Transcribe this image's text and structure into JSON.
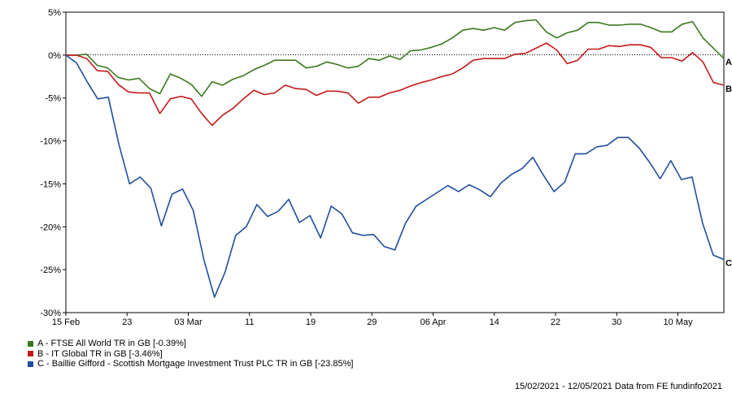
{
  "chart_data": {
    "type": "line",
    "title": "",
    "xlabel": "",
    "ylabel": "",
    "ylim": [
      -30,
      5
    ],
    "yticks": [
      5,
      0,
      -5,
      -10,
      -15,
      -20,
      -25,
      -30
    ],
    "ytick_labels": [
      "5%",
      "0%",
      "-5%",
      "-10%",
      "-15%",
      "-20%",
      "-25%",
      "-30%"
    ],
    "xlim": [
      0,
      86
    ],
    "xticks": [
      {
        "x": 0,
        "label": "15 Feb"
      },
      {
        "x": 8,
        "label": "23"
      },
      {
        "x": 16,
        "label": "03 Mar"
      },
      {
        "x": 24,
        "label": "11"
      },
      {
        "x": 32,
        "label": "19"
      },
      {
        "x": 40,
        "label": "29"
      },
      {
        "x": 48,
        "label": "06 Apr"
      },
      {
        "x": 56,
        "label": "14"
      },
      {
        "x": 64,
        "label": "22"
      },
      {
        "x": 72,
        "label": "30"
      },
      {
        "x": 80,
        "label": "10 May"
      }
    ],
    "grid": false,
    "zero_line": "dotted",
    "legend_position": "bottom-left",
    "series": [
      {
        "name": "A - FTSE All World TR in GB [-0.39%]",
        "end_label": "A",
        "color": "#3a7a1e",
        "values": [
          0,
          0,
          0.1,
          -1.2,
          -1.5,
          -2.6,
          -2.9,
          -2.7,
          -3.9,
          -4.5,
          -2.2,
          -2.7,
          -3.4,
          -4.8,
          -3.1,
          -3.5,
          -2.8,
          -2.4,
          -1.7,
          -1.2,
          -0.6,
          -0.6,
          -0.6,
          -1.5,
          -1.3,
          -0.8,
          -1.1,
          -1.5,
          -1.3,
          -0.4,
          -0.6,
          -0.1,
          -0.5,
          0.5,
          0.6,
          0.9,
          1.3,
          2.0,
          2.9,
          3.1,
          2.9,
          3.2,
          2.9,
          3.8,
          4.0,
          4.1,
          2.7,
          2.0,
          2.6,
          2.9,
          3.8,
          3.8,
          3.5,
          3.5,
          3.6,
          3.6,
          3.2,
          2.7,
          2.7,
          3.6,
          3.9,
          2.0,
          0.8,
          -0.4
        ]
      },
      {
        "name": "B - IT Global TR in GB [-3.46%]",
        "end_label": "B",
        "color": "#c41a1a",
        "values": [
          0,
          0,
          -0.4,
          -1.8,
          -1.9,
          -3.4,
          -4.3,
          -4.4,
          -4.4,
          -6.8,
          -5.1,
          -4.8,
          -5.1,
          -6.8,
          -8.2,
          -7.0,
          -6.2,
          -5.1,
          -4.1,
          -4.6,
          -4.4,
          -3.5,
          -3.9,
          -4.0,
          -4.7,
          -4.2,
          -4.2,
          -4.4,
          -5.6,
          -4.9,
          -4.9,
          -4.4,
          -4.1,
          -3.6,
          -3.2,
          -2.9,
          -2.5,
          -2.2,
          -1.5,
          -0.6,
          -0.4,
          -0.4,
          -0.4,
          0.1,
          0.2,
          0.8,
          1.4,
          0.6,
          -1.0,
          -0.6,
          0.7,
          0.7,
          1.1,
          1.0,
          1.2,
          1.2,
          0.9,
          -0.3,
          -0.3,
          -0.7,
          0.3,
          -0.8,
          -3.2,
          -3.5
        ]
      },
      {
        "name": "C - Baillie Gifford - Scottish Mortgage Investment Trust PLC TR in GB [-23.85%]",
        "end_label": "C",
        "color": "#1f4e9e",
        "values": [
          0,
          -0.9,
          -3.1,
          -5.1,
          -4.9,
          -10.4,
          -15.0,
          -14.2,
          -15.5,
          -19.9,
          -16.2,
          -15.6,
          -18.1,
          -23.8,
          -28.2,
          -25.3,
          -21.0,
          -20.0,
          -17.4,
          -18.8,
          -18.2,
          -16.8,
          -19.5,
          -18.7,
          -21.3,
          -17.6,
          -18.5,
          -20.7,
          -21.0,
          -20.9,
          -22.3,
          -22.7,
          -19.6,
          -17.6,
          -16.8,
          -16.0,
          -15.2,
          -15.9,
          -15.1,
          -15.7,
          -16.5,
          -14.9,
          -13.9,
          -13.2,
          -11.9,
          -14.0,
          -15.9,
          -14.8,
          -11.5,
          -11.5,
          -10.7,
          -10.5,
          -9.6,
          -9.6,
          -10.8,
          -12.5,
          -14.4,
          -12.3,
          -14.5,
          -14.2,
          -19.6,
          -23.3,
          -23.8
        ]
      }
    ]
  },
  "footer": {
    "date_range": "15/02/2021 - 12/05/2021 Data from FE fundinfo2021"
  }
}
